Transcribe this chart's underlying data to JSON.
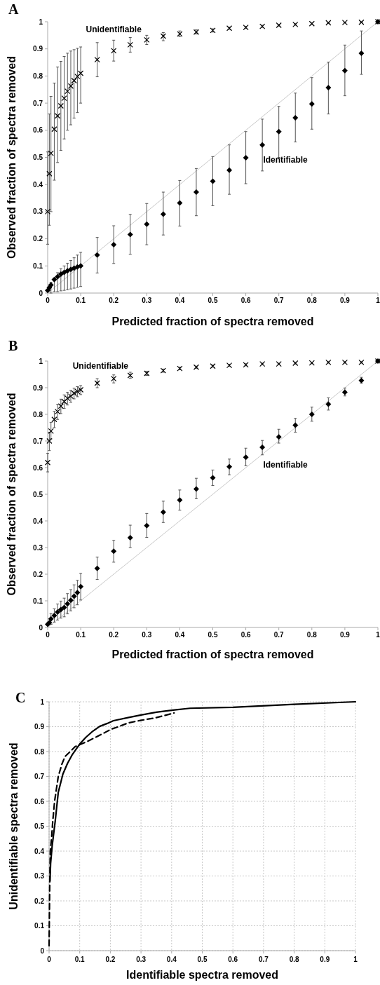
{
  "chart_data": [
    {
      "type": "scatter",
      "title": "A",
      "xlabel": "Predicted fraction of spectra removed",
      "ylabel": "Observed fraction of spectra removed",
      "xlim": [
        0,
        1
      ],
      "ylim": [
        0,
        1
      ],
      "xticks": [
        0,
        0.1,
        0.2,
        0.3,
        0.4,
        0.5,
        0.6,
        0.7,
        0.8,
        0.9,
        1
      ],
      "yticks": [
        0,
        0.1,
        0.2,
        0.3,
        0.4,
        0.5,
        0.6,
        0.7,
        0.8,
        0.9,
        1
      ],
      "grid": false,
      "x": [
        0,
        0.005,
        0.01,
        0.02,
        0.03,
        0.04,
        0.05,
        0.06,
        0.07,
        0.08,
        0.09,
        0.1,
        0.15,
        0.2,
        0.25,
        0.3,
        0.35,
        0.4,
        0.45,
        0.5,
        0.55,
        0.6,
        0.65,
        0.7,
        0.75,
        0.8,
        0.85,
        0.9,
        0.95,
        1
      ],
      "series": [
        {
          "type": "line",
          "color": "#c8c8c8",
          "x": [
            0,
            1
          ],
          "values": [
            0,
            1
          ],
          "marker": "none"
        },
        {
          "name": "Unidentifiable",
          "color": "#000000",
          "marker": "cross",
          "values": [
            0.3,
            0.44,
            0.515,
            0.604,
            0.653,
            0.69,
            0.718,
            0.744,
            0.763,
            0.783,
            0.798,
            0.81,
            0.86,
            0.893,
            0.915,
            0.933,
            0.947,
            0.955,
            0.962,
            0.968,
            0.976,
            0.979,
            0.983,
            0.987,
            0.99,
            0.993,
            0.996,
            0.997,
            0.998,
            1
          ],
          "errors": [
            [
              0.18,
              0.52
            ],
            [
              0.25,
              0.66
            ],
            [
              0.3,
              0.725
            ],
            [
              0.416,
              0.774
            ],
            [
              0.481,
              0.833
            ],
            [
              0.526,
              0.854
            ],
            [
              0.568,
              0.872
            ],
            [
              0.6,
              0.884
            ],
            [
              0.62,
              0.892
            ],
            [
              0.645,
              0.897
            ],
            [
              0.665,
              0.902
            ],
            [
              0.7,
              0.907
            ],
            [
              0.797,
              0.923
            ],
            [
              0.855,
              0.932
            ],
            [
              0.888,
              0.942
            ],
            [
              0.916,
              0.95
            ],
            [
              0.93,
              0.96
            ],
            [
              0.945,
              0.966
            ],
            [
              0.955,
              0.97
            ],
            [
              0.962,
              0.974
            ],
            0.004,
            0.004,
            0.004,
            0.003,
            0.003,
            0.003,
            0.002,
            0.002,
            0.002,
            null
          ]
        },
        {
          "name": "Identifiable",
          "color": "#000000",
          "marker": "diamond",
          "values": [
            0.01,
            0.02,
            0.03,
            0.05,
            0.06,
            0.07,
            0.076,
            0.082,
            0.087,
            0.092,
            0.096,
            0.1,
            0.14,
            0.178,
            0.216,
            0.254,
            0.291,
            0.332,
            0.372,
            0.412,
            0.453,
            0.499,
            0.546,
            0.595,
            0.646,
            0.697,
            0.757,
            0.82,
            0.884,
            1
          ],
          "errors": [
            null,
            null,
            [
              0,
              0.04
            ],
            [
              0.005,
              0.055
            ],
            [
              0.005,
              0.075
            ],
            [
              0.008,
              0.09
            ],
            [
              0.01,
              0.1
            ],
            [
              0.012,
              0.11
            ],
            [
              0.015,
              0.12
            ],
            [
              0.018,
              0.13
            ],
            [
              0.021,
              0.14
            ],
            [
              0.024,
              0.15
            ],
            [
              0.074,
              0.205
            ],
            [
              0.109,
              0.248
            ],
            [
              0.143,
              0.29
            ],
            [
              0.178,
              0.33
            ],
            [
              0.214,
              0.372
            ],
            [
              0.247,
              0.415
            ],
            [
              0.285,
              0.459
            ],
            [
              0.322,
              0.503
            ],
            [
              0.364,
              0.546
            ],
            [
              0.403,
              0.595
            ],
            [
              0.45,
              0.641
            ],
            [
              0.5,
              0.688
            ],
            [
              0.557,
              0.737
            ],
            [
              0.604,
              0.794
            ],
            [
              0.66,
              0.851
            ],
            [
              0.727,
              0.914
            ],
            [
              0.806,
              0.966
            ],
            null
          ]
        }
      ]
    },
    {
      "type": "scatter",
      "title": "B",
      "xlabel": "Predicted fraction of spectra removed",
      "ylabel": "Observed fraction of spectra removed",
      "xlim": [
        0,
        1
      ],
      "ylim": [
        0,
        1
      ],
      "xticks": [
        0,
        0.1,
        0.2,
        0.3,
        0.4,
        0.5,
        0.6,
        0.7,
        0.8,
        0.9,
        1
      ],
      "yticks": [
        0,
        0.1,
        0.2,
        0.3,
        0.4,
        0.5,
        0.6,
        0.7,
        0.8,
        0.9,
        1
      ],
      "grid": false,
      "x": [
        0,
        0.005,
        0.01,
        0.02,
        0.03,
        0.04,
        0.05,
        0.06,
        0.07,
        0.08,
        0.09,
        0.1,
        0.15,
        0.2,
        0.25,
        0.3,
        0.35,
        0.4,
        0.45,
        0.5,
        0.55,
        0.6,
        0.65,
        0.7,
        0.75,
        0.8,
        0.85,
        0.9,
        0.95,
        1
      ],
      "series": [
        {
          "type": "line",
          "color": "#c8c8c8",
          "x": [
            0,
            1
          ],
          "values": [
            0,
            1
          ],
          "marker": "none"
        },
        {
          "name": "Unidentifiable",
          "color": "#000000",
          "marker": "cross",
          "values": [
            0.619,
            0.7,
            0.737,
            0.781,
            0.81,
            0.831,
            0.848,
            0.86,
            0.868,
            0.879,
            0.886,
            0.892,
            0.917,
            0.934,
            0.946,
            0.954,
            0.964,
            0.972,
            0.977,
            0.981,
            0.984,
            0.986,
            0.989,
            0.989,
            0.992,
            0.993,
            0.995,
            0.995,
            0.995,
            1
          ],
          "errors": [
            [
              0.584,
              0.654
            ],
            [
              0.664,
              0.733
            ],
            [
              0.708,
              0.77
            ],
            [
              0.75,
              0.811
            ],
            [
              0.781,
              0.838
            ],
            [
              0.803,
              0.857
            ],
            [
              0.822,
              0.873
            ],
            [
              0.835,
              0.883
            ],
            [
              0.845,
              0.89
            ],
            [
              0.858,
              0.898
            ],
            [
              0.866,
              0.904
            ],
            [
              0.874,
              0.908
            ],
            [
              0.9,
              0.934
            ],
            [
              0.918,
              0.948
            ],
            [
              0.935,
              0.958
            ],
            0.008,
            0.006,
            0.005,
            0.004,
            0.004,
            0.004,
            0.004,
            0.003,
            0.003,
            0.003,
            0.003,
            0.003,
            0.003,
            0.003,
            null
          ]
        },
        {
          "name": "Identifiable",
          "color": "#000000",
          "marker": "diamond",
          "values": [
            0.012,
            0.018,
            0.032,
            0.045,
            0.058,
            0.067,
            0.075,
            0.089,
            0.102,
            0.117,
            0.131,
            0.153,
            0.222,
            0.286,
            0.337,
            0.382,
            0.433,
            0.478,
            0.52,
            0.562,
            0.603,
            0.639,
            0.676,
            0.715,
            0.759,
            0.8,
            0.838,
            0.883,
            0.927,
            1
          ],
          "errors": [
            null,
            null,
            0.02,
            0.025,
            0.03,
            0.032,
            0.035,
            0.038,
            0.04,
            0.043,
            0.046,
            0.05,
            [
              0.18,
              0.264
            ],
            [
              0.245,
              0.327
            ],
            [
              0.3,
              0.384
            ],
            [
              0.338,
              0.428
            ],
            [
              0.394,
              0.474
            ],
            [
              0.44,
              0.516
            ],
            [
              0.483,
              0.56
            ],
            [
              0.533,
              0.591
            ],
            [
              0.573,
              0.632
            ],
            [
              0.607,
              0.673
            ],
            [
              0.648,
              0.702
            ],
            [
              0.692,
              0.744
            ],
            [
              0.733,
              0.785
            ],
            [
              0.774,
              0.827
            ],
            [
              0.816,
              0.862
            ],
            [
              0.869,
              0.899
            ],
            [
              0.917,
              0.939
            ],
            null
          ]
        }
      ]
    },
    {
      "type": "line",
      "title": "C",
      "xlabel": "Identifiable spectra removed",
      "ylabel": "Unidentifiable spectra removed",
      "xlim": [
        0,
        1
      ],
      "ylim": [
        0,
        1
      ],
      "xticks": [
        0,
        0.1,
        0.2,
        0.3,
        0.4,
        0.5,
        0.6,
        0.7,
        0.8,
        0.9,
        1
      ],
      "yticks": [
        0,
        0.1,
        0.2,
        0.3,
        0.4,
        0.5,
        0.6,
        0.7,
        0.8,
        0.9,
        1
      ],
      "grid": true,
      "marker": "none",
      "series": [
        {
          "color": "#000000",
          "line_style": "solid",
          "x": [
            0.003,
            0.005,
            0.01,
            0.02,
            0.03,
            0.045,
            0.06,
            0.075,
            0.1,
            0.12,
            0.14,
            0.165,
            0.19,
            0.21,
            0.26,
            0.3,
            0.35,
            0.4,
            0.46,
            0.6,
            0.8,
            1
          ],
          "values": [
            0.28,
            0.35,
            0.42,
            0.52,
            0.636,
            0.709,
            0.752,
            0.786,
            0.83,
            0.857,
            0.879,
            0.901,
            0.913,
            0.924,
            0.937,
            0.947,
            0.958,
            0.966,
            0.974,
            0.978,
            0.99,
            1
          ]
        },
        {
          "color": "#000000",
          "line_style": "dashed",
          "x": [
            0,
            0.002,
            0.004,
            0.008,
            0.012,
            0.018,
            0.03,
            0.042,
            0.052,
            0.069,
            0.085,
            0.105,
            0.132,
            0.156,
            0.18,
            0.203,
            0.227,
            0.258,
            0.298,
            0.345,
            0.377,
            0.408
          ],
          "values": [
            0.02,
            0.25,
            0.4,
            0.451,
            0.52,
            0.6,
            0.7,
            0.75,
            0.78,
            0.8,
            0.82,
            0.83,
            0.845,
            0.86,
            0.875,
            0.89,
            0.9,
            0.915,
            0.925,
            0.935,
            0.945,
            0.955
          ]
        }
      ]
    }
  ]
}
